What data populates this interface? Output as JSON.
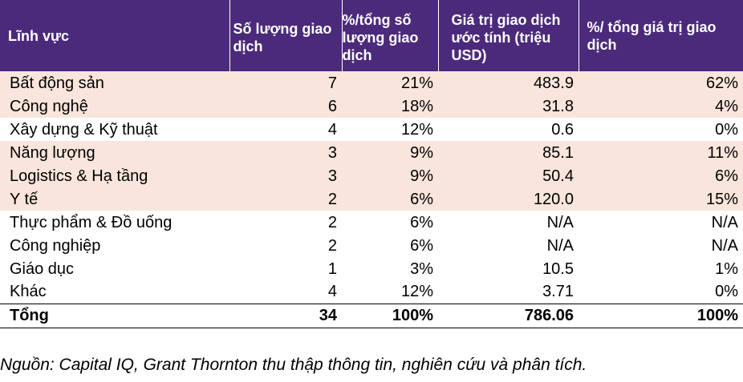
{
  "colors": {
    "header_bg": "#4b2a7b",
    "highlight_row_bg": "#f9e5db",
    "plain_row_bg": "#ffffff"
  },
  "table": {
    "headers": [
      "Lĩnh vực",
      "Số lượng giao dịch",
      "%/tổng số lượng giao dịch",
      "Giá trị giao dịch ước tính (triệu USD)",
      "%/ tổng giá trị giao dịch"
    ],
    "rows": [
      {
        "sector": "Bất động sản",
        "count": "7",
        "count_pct": "21%",
        "value": "483.9",
        "value_pct": "62%",
        "highlight": true
      },
      {
        "sector": "Công nghệ",
        "count": "6",
        "count_pct": "18%",
        "value": "31.8",
        "value_pct": "4%",
        "highlight": true
      },
      {
        "sector": "Xây dựng & Kỹ thuật",
        "count": "4",
        "count_pct": "12%",
        "value": "0.6",
        "value_pct": "0%",
        "highlight": false
      },
      {
        "sector": "Năng lượng",
        "count": "3",
        "count_pct": "9%",
        "value": "85.1",
        "value_pct": "11%",
        "highlight": true
      },
      {
        "sector": "Logistics & Hạ tầng",
        "count": "3",
        "count_pct": "9%",
        "value": "50.4",
        "value_pct": "6%",
        "highlight": true
      },
      {
        "sector": "Y tế",
        "count": "2",
        "count_pct": "6%",
        "value": "120.0",
        "value_pct": "15%",
        "highlight": true
      },
      {
        "sector": "Thực phẩm & Đồ uống",
        "count": "2",
        "count_pct": "6%",
        "value": "N/A",
        "value_pct": "N/A",
        "highlight": false
      },
      {
        "sector": "Công nghiệp",
        "count": "2",
        "count_pct": "6%",
        "value": "N/A",
        "value_pct": "N/A",
        "highlight": false
      },
      {
        "sector": "Giáo dục",
        "count": "1",
        "count_pct": "3%",
        "value": "10.5",
        "value_pct": "1%",
        "highlight": false
      },
      {
        "sector": "Khác",
        "count": "4",
        "count_pct": "12%",
        "value": "3.71",
        "value_pct": "0%",
        "highlight": false
      }
    ],
    "total": {
      "sector": "Tổng",
      "count": "34",
      "count_pct": "100%",
      "value": "786.06",
      "value_pct": "100%"
    }
  },
  "source_note": "Nguồn: Capital IQ, Grant Thornton thu thập thông tin, nghiên cứu và phân tích."
}
